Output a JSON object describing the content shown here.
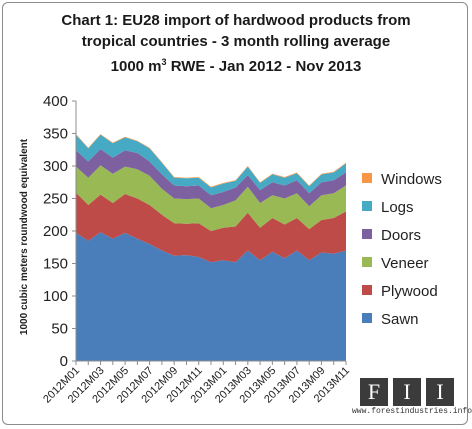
{
  "header": {
    "line1": "Chart 1: EU28 import of hardwood products from",
    "line2": "tropical countries -  3 month rolling  average",
    "line3_pre": "1000 m",
    "line3_sup": "3",
    "line3_post": " RWE  - Jan 2012 - Nov 2013"
  },
  "logo": {
    "letters": [
      "F",
      "I",
      "I"
    ],
    "url": "www.forestindustries.info"
  },
  "colors": {
    "Sawn": "#4a7ebb",
    "Plywood": "#be4b48",
    "Veneer": "#98b954",
    "Doors": "#7d60a0",
    "Logs": "#46aac5",
    "Windows": "#f79646"
  },
  "chart_data": {
    "type": "area",
    "stacked": true,
    "title": "Chart 1: EU28 import of hardwood products from tropical countries -  3 month rolling  average 1000 m3 RWE  - Jan 2012 - Nov 2013",
    "ylabel": "1000 cubic meters roundwood equivalent",
    "xlabel": "",
    "ylim": [
      0,
      400
    ],
    "yticks": [
      0,
      50,
      100,
      150,
      200,
      250,
      300,
      350,
      400
    ],
    "grid": false,
    "legend": "right",
    "x": [
      "2012M01",
      "2012M02",
      "2012M03",
      "2012M04",
      "2012M05",
      "2012M06",
      "2012M07",
      "2012M08",
      "2012M09",
      "2012M10",
      "2012M11",
      "2012M12",
      "2013M01",
      "2013M02",
      "2013M03",
      "2013M04",
      "2013M05",
      "2013M06",
      "2013M07",
      "2013M08",
      "2013M09",
      "2013M10",
      "2013M11"
    ],
    "xtick_labels": [
      "2012M01",
      "",
      "2012M03",
      "",
      "2012M05",
      "",
      "2012M07",
      "",
      "2012M09",
      "",
      "2012M11",
      "",
      "2013M01",
      "",
      "2013M03",
      "",
      "2013M05",
      "",
      "2013M07",
      "",
      "2013M09",
      "",
      "2013M11"
    ],
    "series": [
      {
        "name": "Sawn",
        "values": [
          197,
          185,
          198,
          188,
          197,
          188,
          180,
          170,
          162,
          163,
          160,
          152,
          155,
          152,
          170,
          155,
          168,
          158,
          170,
          155,
          167,
          165,
          170
        ]
      },
      {
        "name": "Plywood",
        "values": [
          62,
          55,
          58,
          55,
          60,
          62,
          60,
          55,
          50,
          48,
          52,
          48,
          50,
          55,
          58,
          50,
          52,
          52,
          50,
          48,
          50,
          55,
          60
        ]
      },
      {
        "name": "Veneer",
        "values": [
          40,
          42,
          45,
          45,
          42,
          45,
          45,
          40,
          38,
          38,
          38,
          35,
          35,
          40,
          40,
          38,
          35,
          40,
          38,
          35,
          38,
          38,
          40
        ]
      },
      {
        "name": "Doors",
        "values": [
          25,
          25,
          25,
          25,
          25,
          25,
          22,
          22,
          20,
          20,
          20,
          20,
          20,
          20,
          18,
          20,
          20,
          20,
          20,
          20,
          20,
          20,
          20
        ]
      },
      {
        "name": "Logs",
        "values": [
          24,
          20,
          22,
          22,
          20,
          18,
          20,
          18,
          12,
          12,
          12,
          12,
          13,
          10,
          13,
          11,
          12,
          12,
          11,
          11,
          12,
          12,
          14
        ]
      },
      {
        "name": "Windows",
        "values": [
          1,
          1,
          1,
          1,
          1,
          1,
          1,
          1,
          1,
          1,
          1,
          1,
          1,
          1,
          1,
          1,
          1,
          1,
          1,
          1,
          1,
          1,
          1
        ]
      }
    ],
    "legend_order": [
      "Windows",
      "Logs",
      "Doors",
      "Veneer",
      "Plywood",
      "Sawn"
    ]
  }
}
